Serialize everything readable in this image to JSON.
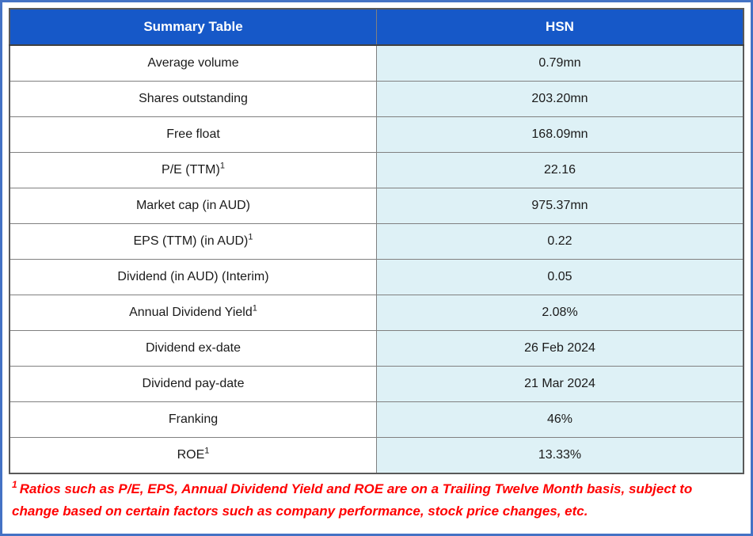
{
  "colors": {
    "header_background": "#1658C8",
    "header_text": "#FFFFFF",
    "value_cell_background": "#DEF1F6",
    "label_cell_background": "#FFFFFF",
    "outer_frame": "#4472C4",
    "table_border": "#595959",
    "cell_border": "#808080",
    "footnote_text": "#FF0000",
    "body_text": "#1A1A1A"
  },
  "table": {
    "header": {
      "left": "Summary Table",
      "right": "HSN"
    },
    "rows": [
      {
        "label": "Average volume",
        "value": "0.79mn"
      },
      {
        "label": "Shares outstanding",
        "value": "203.20mn"
      },
      {
        "label": "Free float",
        "value": "168.09mn"
      },
      {
        "label": "P/E (TTM)",
        "sup": "1",
        "value": "22.16"
      },
      {
        "label": "Market cap (in AUD)",
        "value": "975.37mn"
      },
      {
        "label": "EPS (TTM) (in AUD)",
        "sup": "1",
        "value": "0.22"
      },
      {
        "label": "Dividend (in AUD) (Interim)",
        "value": "0.05"
      },
      {
        "label": "Annual Dividend Yield",
        "sup": "1",
        "value": "2.08%"
      },
      {
        "label": "Dividend ex-date",
        "value": "26 Feb 2024"
      },
      {
        "label": "Dividend pay-date",
        "value": "21 Mar 2024"
      },
      {
        "label": "Franking",
        "value": "46%"
      },
      {
        "label": "ROE",
        "sup": "1",
        "value": "13.33%"
      }
    ]
  },
  "footnote": {
    "sup": "1",
    "text": "Ratios such as P/E, EPS, Annual Dividend Yield and ROE are on a Trailing Twelve Month basis, subject to change based on certain factors such as company performance, stock price changes, etc."
  }
}
